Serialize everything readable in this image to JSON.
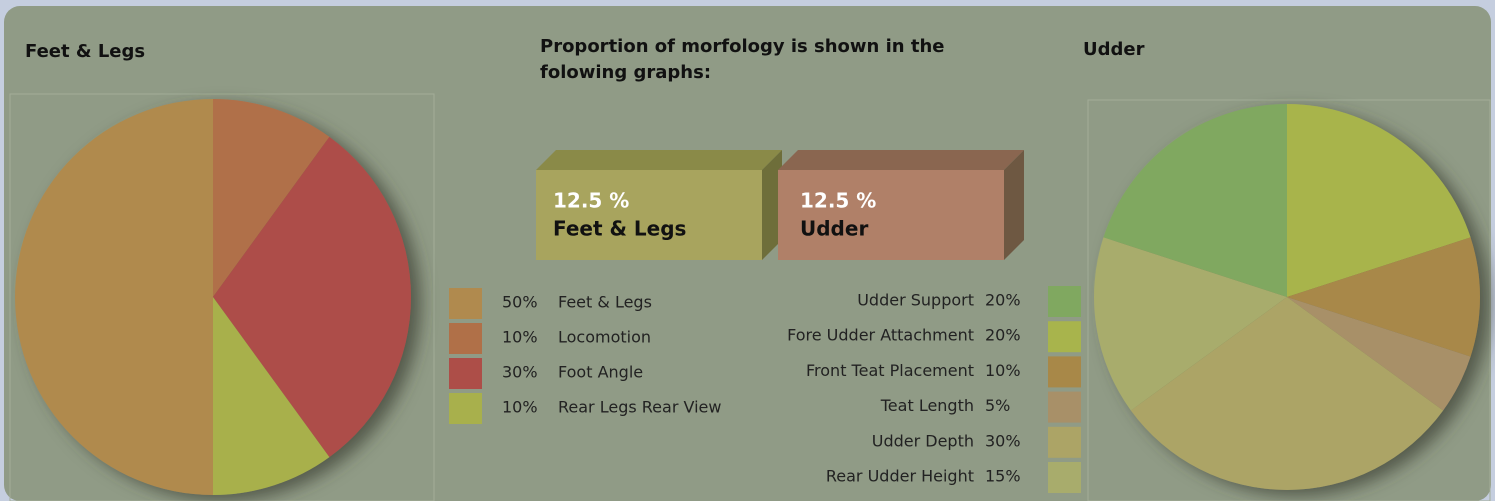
{
  "heading": "Proportion of morfology is shown in the folowing graphs:",
  "boxes": [
    {
      "label": "12.5 %",
      "name": "Feet & Legs"
    },
    {
      "label": "12.5 %",
      "name": "Udder"
    }
  ],
  "chart_data": [
    {
      "type": "pie",
      "title": "Feet & Legs",
      "categories": [
        "Feet & Legs",
        "Locomotion",
        "Foot Angle",
        "Rear Legs Rear View"
      ],
      "values": [
        50,
        10,
        30,
        10
      ],
      "value_labels": [
        "50%",
        "10%",
        "30%",
        "10%"
      ],
      "colors": [
        "#b08a4e",
        "#b07048",
        "#ad4e48",
        "#a8b04c"
      ],
      "start_angle": 180
    },
    {
      "type": "pie",
      "title": "Udder",
      "categories": [
        "Udder Support",
        "Fore Udder Attachment",
        "Front Teat Placement",
        "Teat Length",
        "Udder Depth",
        "Rear Udder Height"
      ],
      "values": [
        20,
        20,
        10,
        5,
        30,
        15
      ],
      "value_labels": [
        "20%",
        "20%",
        "10%",
        "5%",
        "30%",
        "15%"
      ],
      "colors": [
        "#80a860",
        "#a8b44c",
        "#a88848",
        "#a89068",
        "#aca466",
        "#a8ac6c"
      ],
      "start_angle": -72
    }
  ]
}
